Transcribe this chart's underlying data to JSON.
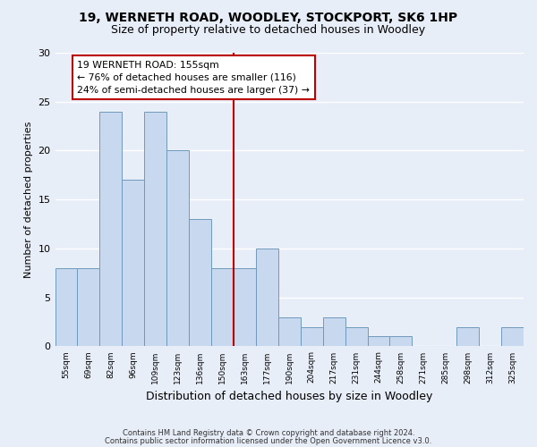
{
  "title_line1": "19, WERNETH ROAD, WOODLEY, STOCKPORT, SK6 1HP",
  "title_line2": "Size of property relative to detached houses in Woodley",
  "xlabel": "Distribution of detached houses by size in Woodley",
  "ylabel": "Number of detached properties",
  "categories": [
    "55sqm",
    "69sqm",
    "82sqm",
    "96sqm",
    "109sqm",
    "123sqm",
    "136sqm",
    "150sqm",
    "163sqm",
    "177sqm",
    "190sqm",
    "204sqm",
    "217sqm",
    "231sqm",
    "244sqm",
    "258sqm",
    "271sqm",
    "285sqm",
    "298sqm",
    "312sqm",
    "325sqm"
  ],
  "values": [
    8,
    8,
    24,
    17,
    24,
    20,
    13,
    8,
    8,
    10,
    3,
    2,
    3,
    2,
    1,
    1,
    0,
    0,
    2,
    0,
    2
  ],
  "bar_color": "#c8d8ee",
  "bar_edge_color": "#7099bb",
  "background_color": "#e8eef8",
  "grid_color": "#ffffff",
  "ref_line_x": 7.5,
  "ref_line_color": "#bb0000",
  "annotation_text": "19 WERNETH ROAD: 155sqm\n← 76% of detached houses are smaller (116)\n24% of semi-detached houses are larger (37) →",
  "annotation_box_facecolor": "#ffffff",
  "annotation_box_edgecolor": "#bb0000",
  "ylim": [
    0,
    30
  ],
  "yticks": [
    0,
    5,
    10,
    15,
    20,
    25,
    30
  ],
  "footer_line1": "Contains HM Land Registry data © Crown copyright and database right 2024.",
  "footer_line2": "Contains public sector information licensed under the Open Government Licence v3.0."
}
